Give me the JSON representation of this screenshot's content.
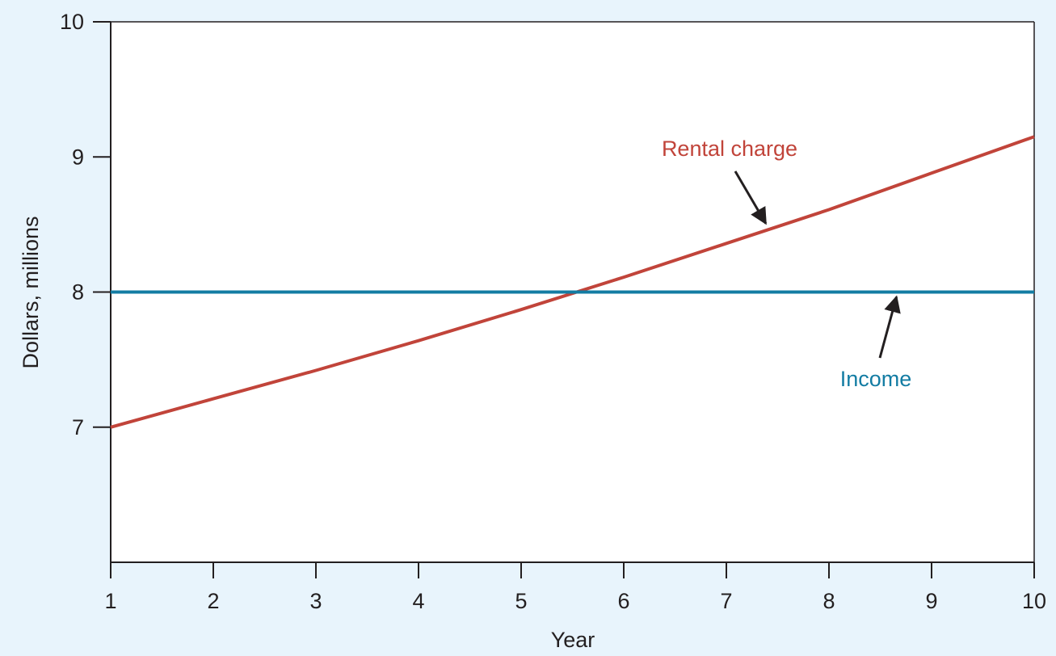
{
  "chart_data": {
    "type": "line",
    "xlabel": "Year",
    "ylabel": "Dollars, millions",
    "xlim": [
      1,
      10
    ],
    "ylim": [
      6,
      10
    ],
    "x_ticks": [
      1,
      2,
      3,
      4,
      5,
      6,
      7,
      8,
      9,
      10
    ],
    "y_ticks": [
      7,
      8,
      9,
      10
    ],
    "grid": false,
    "series": [
      {
        "name": "Rental charge",
        "color": "#c1443a",
        "x": [
          1,
          2,
          3,
          4,
          5,
          6,
          7,
          8,
          9,
          10
        ],
        "y": [
          7.0,
          7.21,
          7.42,
          7.64,
          7.87,
          8.11,
          8.36,
          8.61,
          8.88,
          9.15
        ]
      },
      {
        "name": "Income",
        "color": "#137ca3",
        "x": [
          1,
          10
        ],
        "y": [
          8.0,
          8.0
        ]
      }
    ],
    "annotations": [
      {
        "text": "Rental charge",
        "color": "#c1443a",
        "arrow_to": [
          7.4,
          8.46
        ]
      },
      {
        "text": "Income",
        "color": "#137ca3",
        "arrow_to": [
          8.65,
          8.0
        ]
      }
    ]
  }
}
